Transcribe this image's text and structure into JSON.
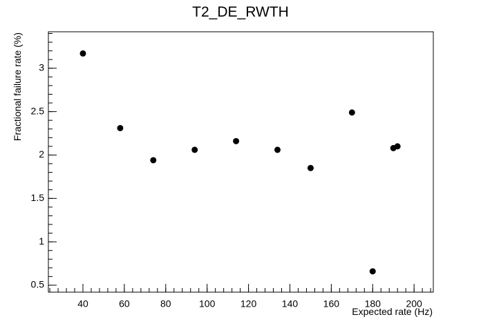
{
  "chart_data": {
    "type": "scatter",
    "title": "T2_DE_RWTH",
    "x_label": "Expected rate (Hz)",
    "y_label": "Fractional failure rate (%)",
    "x": [
      40,
      58,
      74,
      94,
      114,
      134,
      150,
      170,
      180,
      190,
      192
    ],
    "values": [
      3.17,
      2.31,
      1.94,
      2.06,
      2.16,
      2.06,
      1.85,
      2.49,
      0.66,
      2.08,
      2.1
    ],
    "color": "#000000",
    "xlim": [
      23.3,
      209.3
    ],
    "xticks": [
      40,
      60,
      80,
      100,
      120,
      140,
      160,
      180,
      200
    ],
    "ylim": [
      0.42,
      3.42
    ],
    "yticks": [
      0.5,
      1,
      1.5,
      2,
      2.5,
      3
    ]
  }
}
